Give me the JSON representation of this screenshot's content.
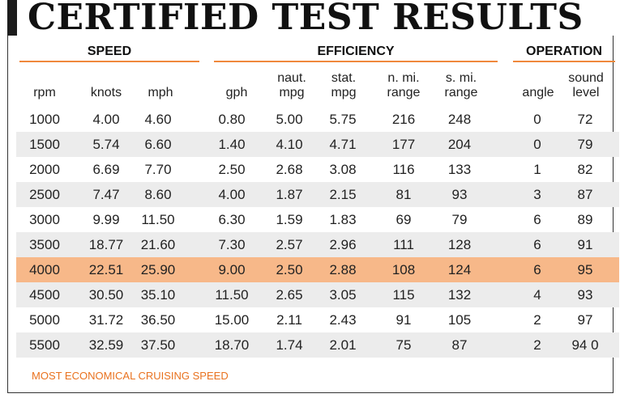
{
  "title": "CERTIFIED TEST RESULTS",
  "groups": {
    "speed": "SPEED",
    "efficiency": "EFFICIENCY",
    "operation": "OPERATION"
  },
  "columns": {
    "rpm": "rpm",
    "knots": "knots",
    "mph": "mph",
    "gph": "gph",
    "naut_mpg": "naut.\nmpg",
    "stat_mpg": "stat.\nmpg",
    "nmi_range": "n. mi.\nrange",
    "smi_range": "s. mi.\nrange",
    "angle": "angle",
    "sound_level": "sound\nlevel"
  },
  "rows": [
    {
      "rpm": "1000",
      "knots": "4.00",
      "mph": "4.60",
      "gph": "0.80",
      "naut_mpg": "5.00",
      "stat_mpg": "5.75",
      "nmi_range": "216",
      "smi_range": "248",
      "angle": "0",
      "sound": "72"
    },
    {
      "rpm": "1500",
      "knots": "5.74",
      "mph": "6.60",
      "gph": "1.40",
      "naut_mpg": "4.10",
      "stat_mpg": "4.71",
      "nmi_range": "177",
      "smi_range": "204",
      "angle": "0",
      "sound": "79"
    },
    {
      "rpm": "2000",
      "knots": "6.69",
      "mph": "7.70",
      "gph": "2.50",
      "naut_mpg": "2.68",
      "stat_mpg": "3.08",
      "nmi_range": "116",
      "smi_range": "133",
      "angle": "1",
      "sound": "82"
    },
    {
      "rpm": "2500",
      "knots": "7.47",
      "mph": "8.60",
      "gph": "4.00",
      "naut_mpg": "1.87",
      "stat_mpg": "2.15",
      "nmi_range": "81",
      "smi_range": "93",
      "angle": "3",
      "sound": "87"
    },
    {
      "rpm": "3000",
      "knots": "9.99",
      "mph": "11.50",
      "gph": "6.30",
      "naut_mpg": "1.59",
      "stat_mpg": "1.83",
      "nmi_range": "69",
      "smi_range": "79",
      "angle": "6",
      "sound": "89"
    },
    {
      "rpm": "3500",
      "knots": "18.77",
      "mph": "21.60",
      "gph": "7.30",
      "naut_mpg": "2.57",
      "stat_mpg": "2.96",
      "nmi_range": "111",
      "smi_range": "128",
      "angle": "6",
      "sound": "91"
    },
    {
      "rpm": "4000",
      "knots": "22.51",
      "mph": "25.90",
      "gph": "9.00",
      "naut_mpg": "2.50",
      "stat_mpg": "2.88",
      "nmi_range": "108",
      "smi_range": "124",
      "angle": "6",
      "sound": "95",
      "highlight": true
    },
    {
      "rpm": "4500",
      "knots": "30.50",
      "mph": "35.10",
      "gph": "11.50",
      "naut_mpg": "2.65",
      "stat_mpg": "3.05",
      "nmi_range": "115",
      "smi_range": "132",
      "angle": "4",
      "sound": "93"
    },
    {
      "rpm": "5000",
      "knots": "31.72",
      "mph": "36.50",
      "gph": "15.00",
      "naut_mpg": "2.11",
      "stat_mpg": "2.43",
      "nmi_range": "91",
      "smi_range": "105",
      "angle": "2",
      "sound": "97"
    },
    {
      "rpm": "5500",
      "knots": "32.59",
      "mph": "37.50",
      "gph": "18.70",
      "naut_mpg": "1.74",
      "stat_mpg": "2.01",
      "nmi_range": "75",
      "smi_range": "87",
      "angle": "2",
      "sound": "94 0"
    }
  ],
  "footnote": "MOST ECONOMICAL CRUISING SPEED",
  "colors": {
    "accent_orange": "#f0883c",
    "highlight_row": "#f7b889",
    "alt_row": "#ececec",
    "footnote": "#e9721f"
  }
}
